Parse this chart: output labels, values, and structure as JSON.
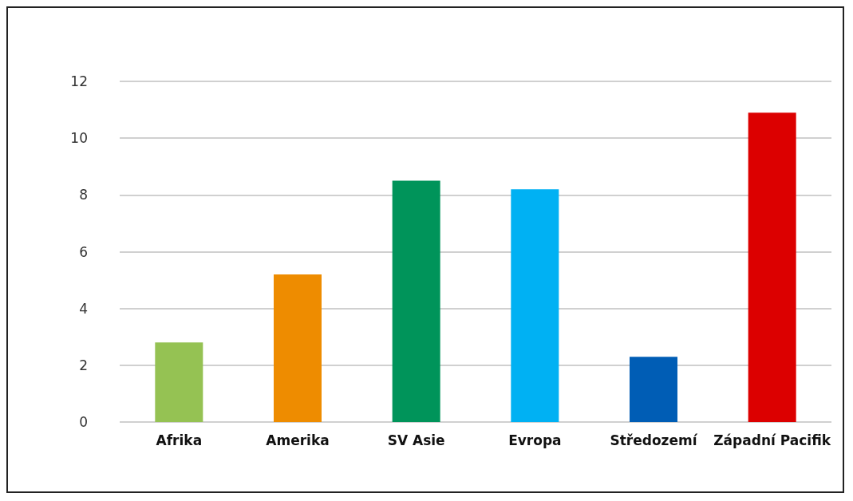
{
  "chart_data": {
    "type": "bar",
    "categories": [
      "Afrika",
      "Amerika",
      "SV Asie",
      "Evropa",
      "Středozemí",
      "Západní Pacifik"
    ],
    "values": [
      2.8,
      5.2,
      8.5,
      8.2,
      2.3,
      10.9
    ],
    "colors": [
      "#95c253",
      "#ee8c00",
      "#00945a",
      "#00b1f3",
      "#005db5",
      "#dc0000"
    ],
    "ylim": [
      0,
      12
    ],
    "yticks": [
      0,
      2,
      4,
      6,
      8,
      10,
      12
    ],
    "grid": "y"
  }
}
